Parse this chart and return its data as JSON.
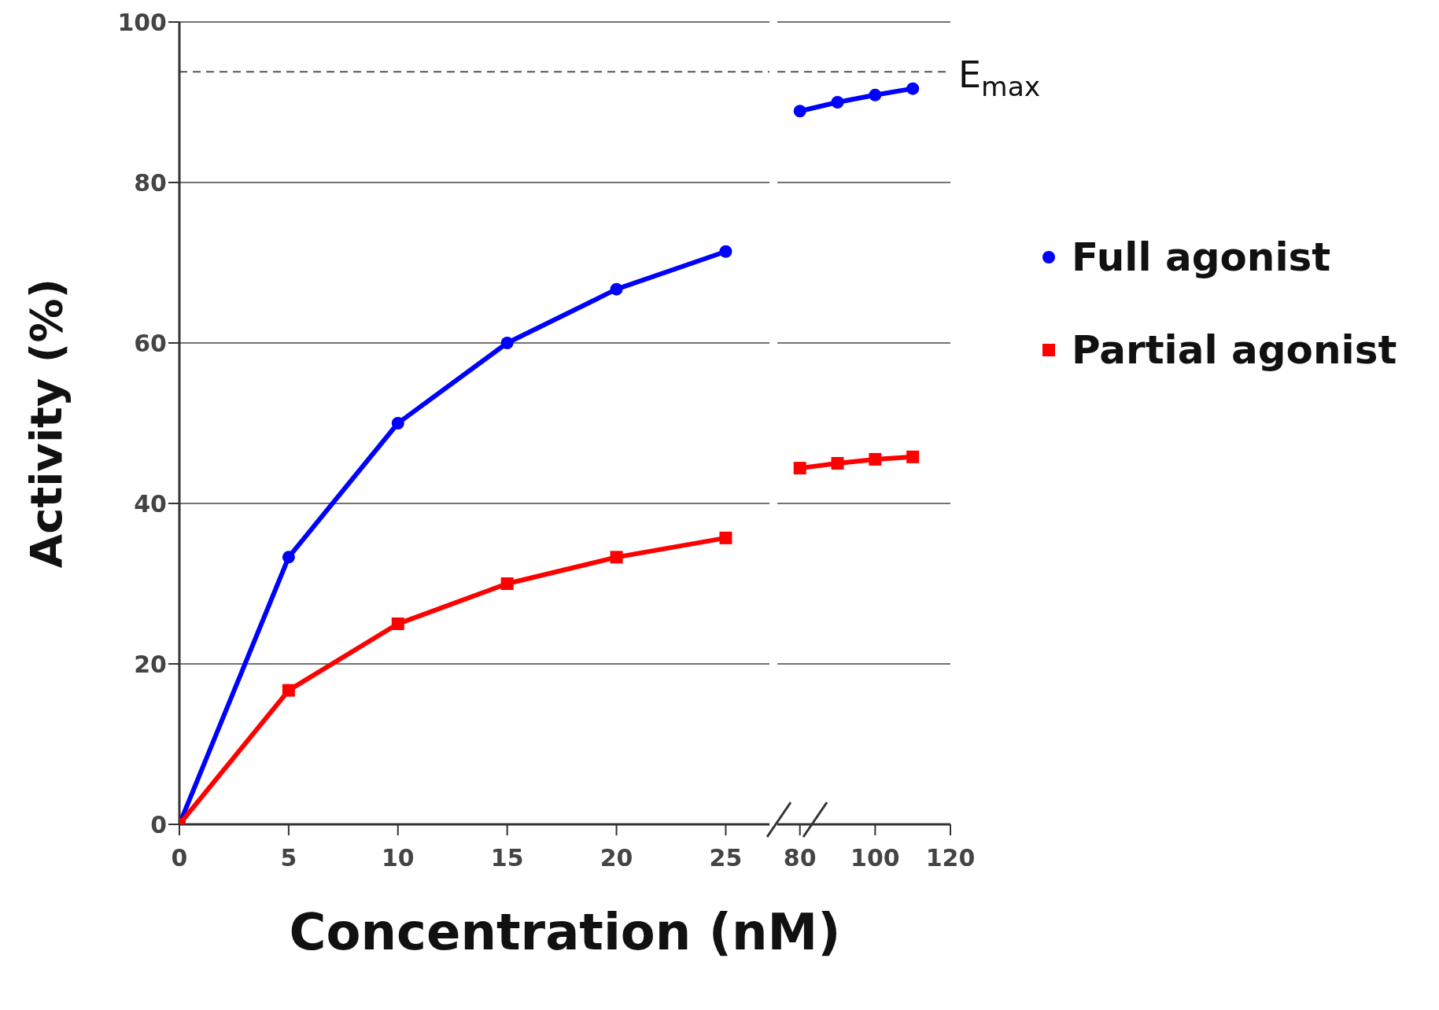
{
  "chart_data": [
    {
      "type": "line",
      "xlabel": "Concentration (nM)",
      "ylabel": "Activity (%)",
      "x": [
        0,
        5,
        10,
        15,
        20,
        25
      ],
      "xlim": [
        0,
        27
      ],
      "xticks": [
        0,
        5,
        10,
        15,
        20,
        25
      ],
      "ylim": [
        0,
        100
      ],
      "yticks": [
        0,
        20,
        40,
        60,
        80,
        100
      ],
      "grid": "y",
      "ref_lines": [
        {
          "axis": "y",
          "value": 93.8,
          "line_style": "dashed",
          "color": "#555555"
        }
      ],
      "series": [
        {
          "color": "#0000ff",
          "marker": "circle",
          "values": [
            0,
            33.3,
            50,
            60,
            66.7,
            71.4
          ]
        },
        {
          "color": "#ff0000",
          "marker": "square",
          "values": [
            0,
            16.7,
            25,
            30,
            33.3,
            35.7
          ]
        }
      ]
    },
    {
      "type": "line",
      "x": [
        80,
        90,
        100,
        110
      ],
      "xlim": [
        74,
        120
      ],
      "xticks": [
        80,
        100,
        120
      ],
      "ylim": [
        0,
        100
      ],
      "yticks": [
        0,
        20,
        40,
        60,
        80,
        100
      ],
      "tick_labels": "x",
      "grid": "y",
      "legend": "right",
      "ref_lines": [
        {
          "axis": "y",
          "value": 93.8,
          "label": "E$_{max}$",
          "line_style": "dashed",
          "color": "#555555"
        }
      ],
      "series": [
        {
          "name": "Full agonist",
          "color": "#0000ff",
          "marker": "circle",
          "values": [
            88.9,
            90,
            90.9,
            91.7
          ]
        },
        {
          "name": "Partial agonist",
          "color": "#ff0000",
          "marker": "square",
          "values": [
            44.4,
            45,
            45.5,
            45.8
          ]
        }
      ]
    }
  ]
}
